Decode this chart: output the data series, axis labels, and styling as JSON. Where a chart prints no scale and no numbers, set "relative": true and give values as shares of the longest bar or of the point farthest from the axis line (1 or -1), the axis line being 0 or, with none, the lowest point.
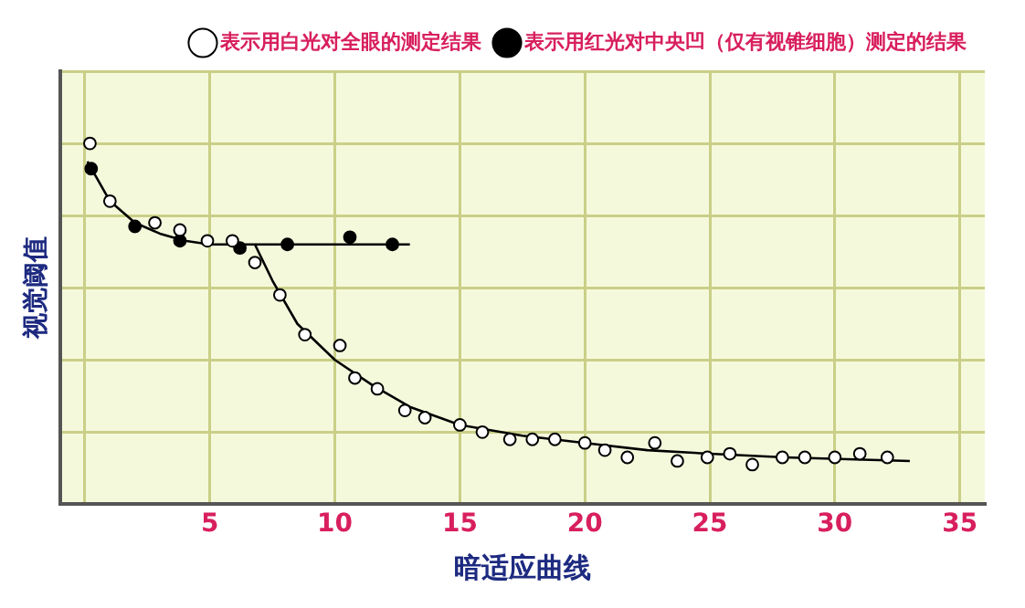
{
  "chart_data": {
    "type": "scatter",
    "xlabel": "暗适应曲线",
    "ylabel": "视觉阈值",
    "relative": true,
    "xlim": [
      -1,
      36
    ],
    "xticks": [
      {
        "value": 0,
        "label": null
      },
      5,
      10,
      15,
      20,
      25,
      30,
      35
    ],
    "grid": true,
    "legend": "top right",
    "marker": "circle",
    "series": [
      {
        "name": "表示用白光对全眼的测定结果",
        "color": "#000000",
        "type": "scatter",
        "x": [
          0.2,
          1.0,
          2.8,
          3.8,
          4.9,
          5.9,
          6.8,
          7.8,
          8.8,
          10.2,
          10.8,
          11.7,
          12.8,
          13.6,
          15.0,
          15.9,
          17.0,
          17.9,
          18.8,
          20.0,
          20.8,
          21.7,
          22.8,
          23.7,
          24.9,
          25.8,
          26.7,
          27.9,
          28.8,
          30.0,
          31.0,
          32.1
        ],
        "values": [
          1.0,
          0.84,
          0.78,
          0.76,
          0.73,
          0.73,
          0.67,
          0.58,
          0.47,
          0.44,
          0.35,
          0.32,
          0.26,
          0.24,
          0.22,
          0.2,
          0.18,
          0.18,
          0.18,
          0.17,
          0.15,
          0.13,
          0.17,
          0.12,
          0.13,
          0.14,
          0.11,
          0.13,
          0.13,
          0.13,
          0.14,
          0.13
        ]
      },
      {
        "name": "表示用红光对中央凹（仅有视锥细胞）测定的结果",
        "color": "#000000",
        "type": "scatter",
        "x": [
          0.25,
          2.0,
          3.8,
          6.2,
          8.1,
          10.6,
          12.3
        ],
        "values": [
          0.93,
          0.77,
          0.73,
          0.71,
          0.72,
          0.74,
          0.72
        ]
      },
      {
        "color": "#000000",
        "type": "line",
        "marker": "none",
        "x": [
          0.1,
          1,
          2,
          3,
          4,
          5,
          6.5,
          9,
          13
        ],
        "values": [
          0.95,
          0.84,
          0.78,
          0.75,
          0.73,
          0.72,
          0.72,
          0.72,
          0.72
        ]
      },
      {
        "color": "#000000",
        "type": "line",
        "marker": "none",
        "x": [
          6.8,
          7.5,
          8.5,
          10,
          11.5,
          13,
          15,
          17.5,
          20,
          22.5,
          25,
          28,
          33
        ],
        "values": [
          0.72,
          0.62,
          0.5,
          0.4,
          0.33,
          0.27,
          0.22,
          0.19,
          0.17,
          0.15,
          0.14,
          0.13,
          0.12
        ]
      }
    ]
  }
}
